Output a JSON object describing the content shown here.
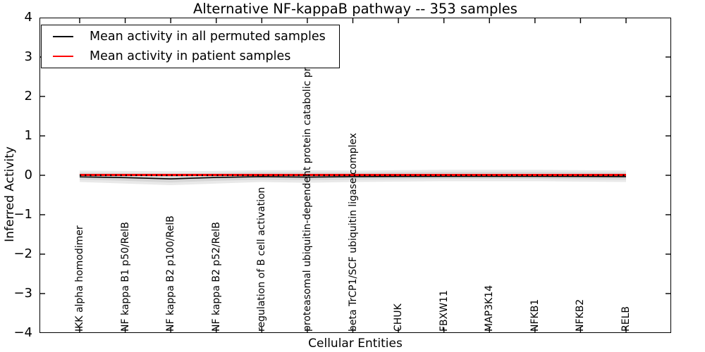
{
  "title": "Alternative NF-kappaB pathway -- 353 samples",
  "legend": {
    "items": [
      {
        "label": "Mean activity in all permuted samples",
        "color": "#000000"
      },
      {
        "label": "Mean activity in patient samples",
        "color": "#ff0000"
      }
    ]
  },
  "axes": {
    "x_label": "Cellular Entities",
    "y_label": "Inferred Activity",
    "y_tick_labels": [
      "4",
      "3",
      "2",
      "1",
      "0",
      "−1",
      "−2",
      "−3",
      "−4"
    ],
    "y_tick_values": [
      4,
      3,
      2,
      1,
      0,
      -1,
      -2,
      -3,
      -4
    ]
  },
  "colors": {
    "band_outer": "#e9e9e9",
    "band_inner": "#d7d7d7",
    "permuted_line": "#000000",
    "patient_line": "#ff0000",
    "zero_dotted": "#000000"
  },
  "chart_data": {
    "type": "line",
    "title": "Alternative NF-kappaB pathway -- 353 samples",
    "xlabel": "Cellular Entities",
    "ylabel": "Inferred Activity",
    "ylim": [
      -4,
      4
    ],
    "grid": false,
    "legend_position": "upper left",
    "categories": [
      "IKK alpha homodimer",
      "NF kappa B1 p50/RelB",
      "NF kappa B2 p100/RelB",
      "NF kappa B2 p52/RelB",
      "regulation of B cell activation",
      "proteasomal ubiquitin-dependent protein catabolic pr",
      "beta TrCP1/SCF ubiquitin ligase complex",
      "CHUK",
      "FBXW11",
      "MAP3K14",
      "NFKB1",
      "NFKB2",
      "RELB"
    ],
    "series": [
      {
        "name": "Mean activity in all permuted samples",
        "color": "#000000",
        "style": "solid",
        "width": 1.6,
        "values": [
          -0.04,
          -0.06,
          -0.09,
          -0.055,
          -0.035,
          -0.045,
          -0.035,
          -0.03,
          -0.028,
          -0.028,
          -0.028,
          -0.03,
          -0.035
        ]
      },
      {
        "name": "Mean activity in patient samples",
        "color": "#ff0000",
        "style": "solid",
        "width": 3,
        "values": [
          0.01,
          0.01,
          0.01,
          0.01,
          0.01,
          0.01,
          0.01,
          0.01,
          0.01,
          0.01,
          0.01,
          0.01,
          0.01
        ]
      },
      {
        "name": "zero-reference",
        "color": "#000000",
        "style": "dotted",
        "width": 2.2,
        "values": [
          0,
          0,
          0,
          0,
          0,
          0,
          0,
          0,
          0,
          0,
          0,
          0,
          0
        ]
      }
    ],
    "bands": [
      {
        "name": "permuted-std-outer",
        "color": "#e9e9e9",
        "upper": [
          0.12,
          0.11,
          0.1,
          0.11,
          0.13,
          0.13,
          0.12,
          0.13,
          0.14,
          0.14,
          0.14,
          0.13,
          0.12
        ],
        "lower": [
          -0.17,
          -0.21,
          -0.25,
          -0.21,
          -0.17,
          -0.19,
          -0.17,
          -0.16,
          -0.15,
          -0.15,
          -0.15,
          -0.16,
          -0.17
        ]
      },
      {
        "name": "permuted-std-inner",
        "color": "#d7d7d7",
        "upper": [
          0.07,
          0.06,
          0.05,
          0.06,
          0.08,
          0.08,
          0.07,
          0.08,
          0.09,
          0.09,
          0.09,
          0.08,
          0.07
        ],
        "lower": [
          -0.11,
          -0.14,
          -0.18,
          -0.14,
          -0.11,
          -0.12,
          -0.11,
          -0.1,
          -0.09,
          -0.09,
          -0.09,
          -0.1,
          -0.11
        ]
      }
    ]
  }
}
